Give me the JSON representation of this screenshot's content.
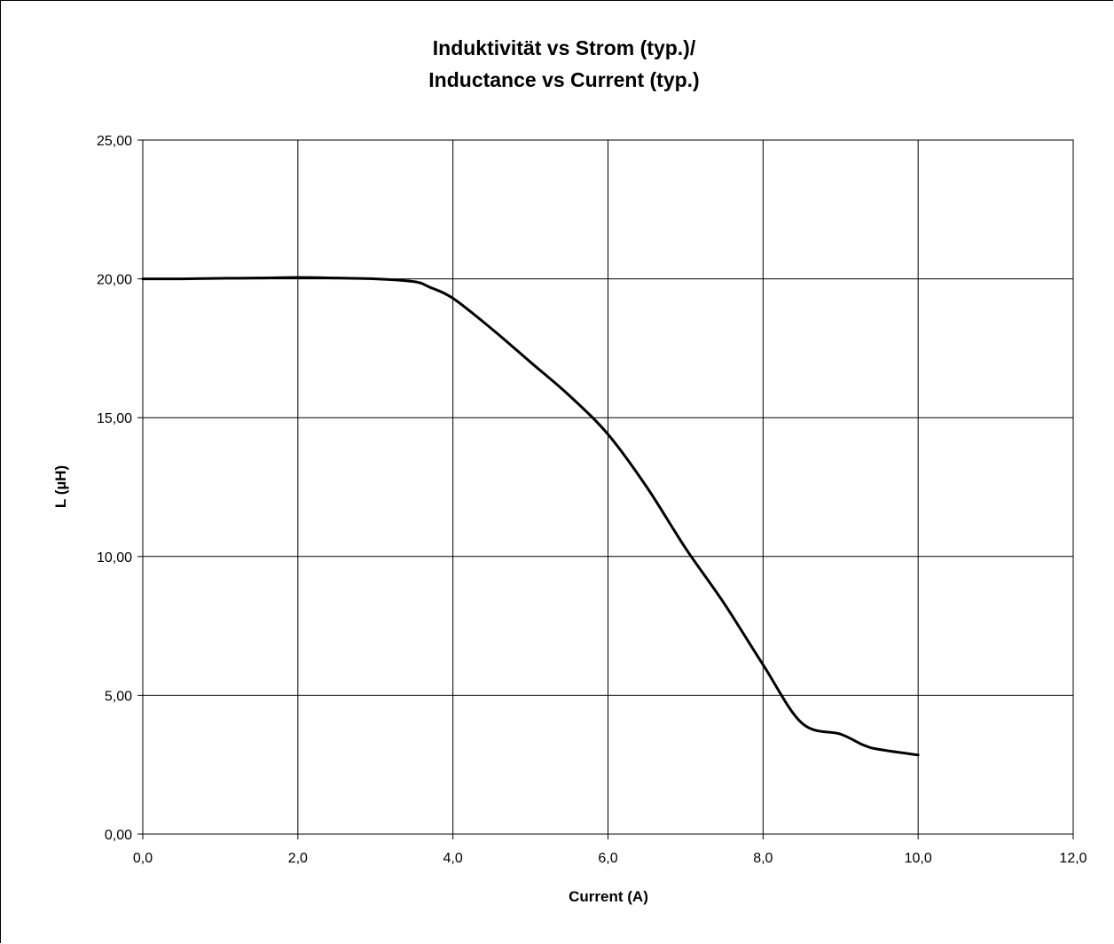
{
  "chart_data": {
    "type": "line",
    "title": [
      "Induktivität vs Strom (typ.)/",
      "Inductance vs Current (typ.)"
    ],
    "xlabel": "Current (A)",
    "ylabel": "L (µH)",
    "xlim": [
      0,
      12
    ],
    "ylim": [
      0,
      25
    ],
    "xticks": [
      0,
      2,
      4,
      6,
      8,
      10,
      12
    ],
    "yticks": [
      0,
      5,
      10,
      15,
      20,
      25
    ],
    "xtick_labels": [
      "0,0",
      "2,0",
      "4,0",
      "6,0",
      "8,0",
      "10,0",
      "12,0"
    ],
    "ytick_labels": [
      "0,00",
      "5,00",
      "10,00",
      "15,00",
      "20,00",
      "25,00"
    ],
    "grid": true,
    "legend": "none",
    "colors": {
      "line": "#000000",
      "grid": "#000000"
    },
    "series": [
      {
        "x": [
          0,
          0.5,
          1.0,
          1.5,
          2.0,
          2.5,
          3.0,
          3.5,
          3.7,
          4.0,
          4.5,
          5.0,
          5.5,
          6.0,
          6.5,
          7.0,
          7.5,
          8.0,
          8.5,
          9.0,
          9.3,
          9.5,
          10.0
        ],
        "values": [
          20.0,
          20.0,
          20.02,
          20.03,
          20.05,
          20.03,
          20.0,
          19.9,
          19.7,
          19.3,
          18.2,
          17.0,
          15.8,
          14.4,
          12.5,
          10.3,
          8.3,
          6.1,
          4.0,
          3.6,
          3.2,
          3.05,
          2.85
        ]
      }
    ]
  }
}
